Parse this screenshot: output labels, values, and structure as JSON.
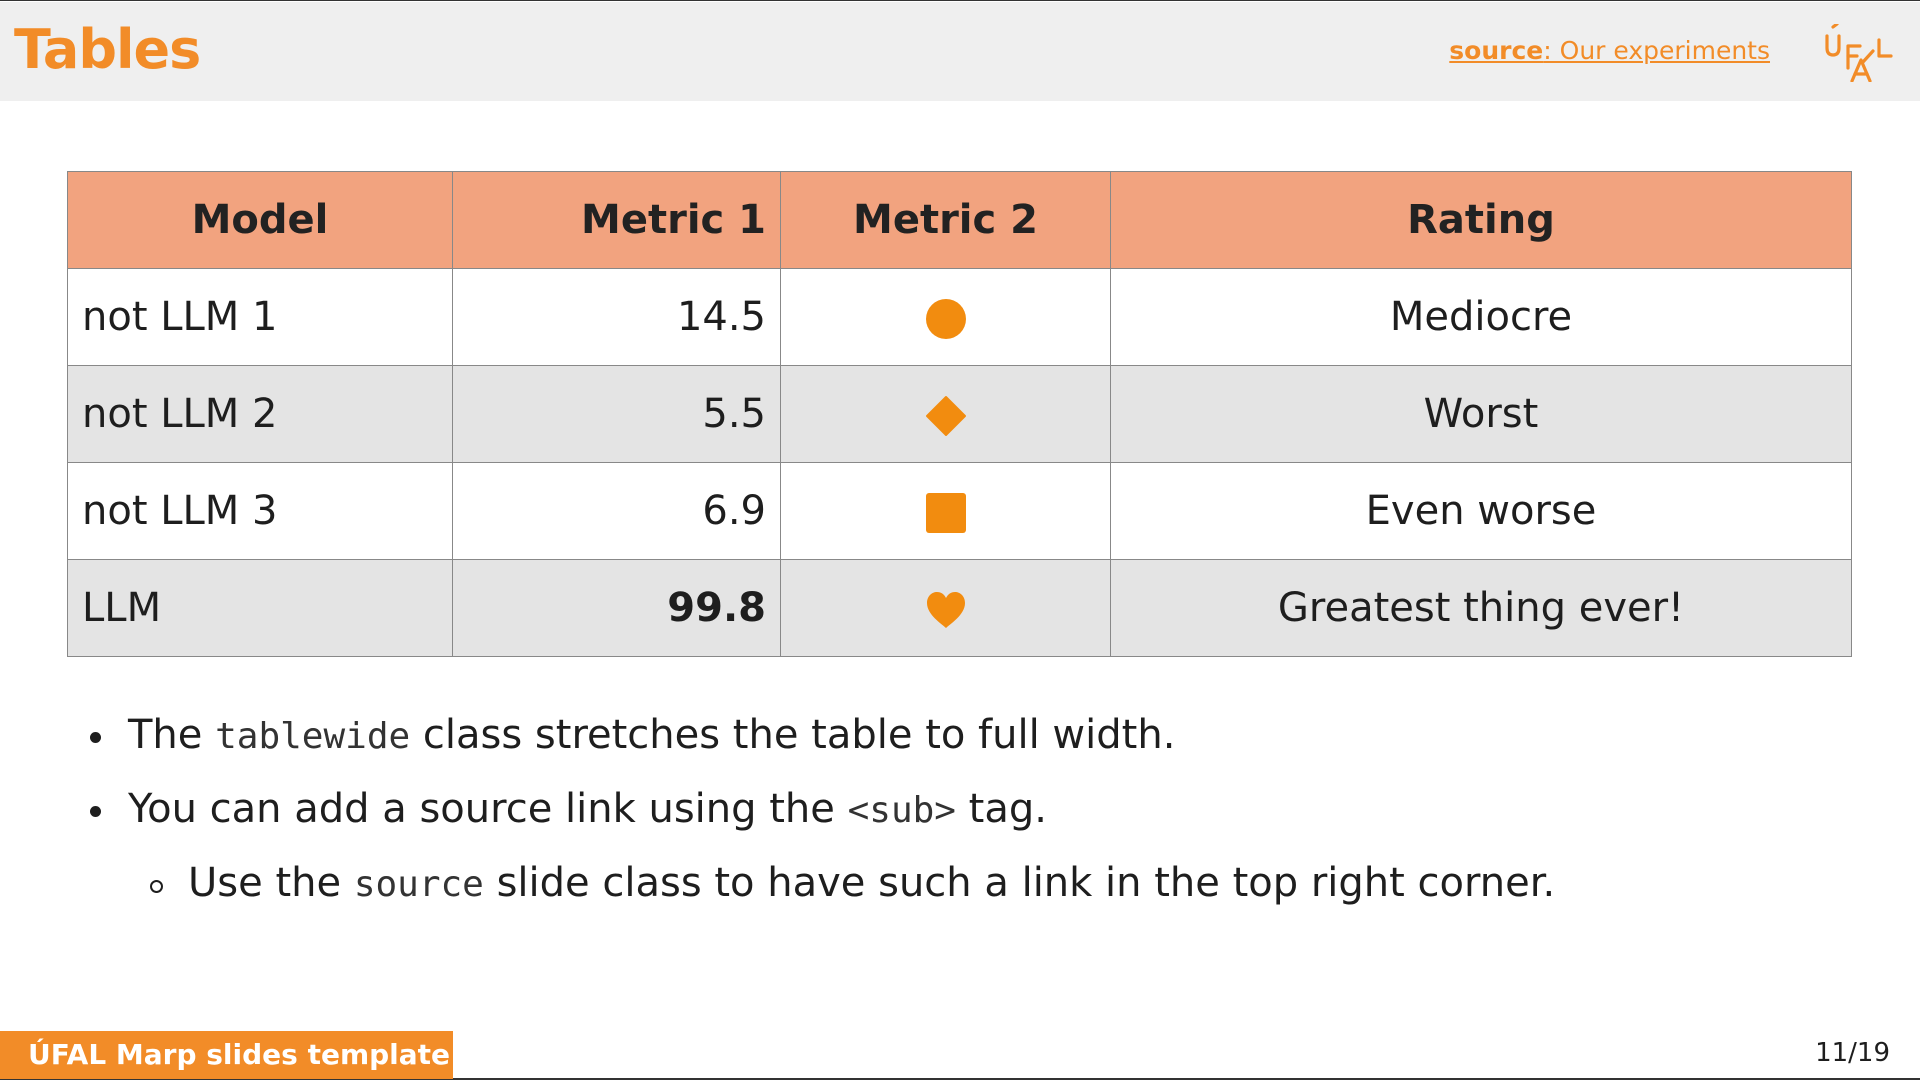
{
  "header": {
    "title": "Tables",
    "source_label": "source",
    "source_text": ": Our experiments",
    "logo_text": "ÚFAL"
  },
  "table": {
    "columns": [
      "Model",
      "Metric 1",
      "Metric 2",
      "Rating"
    ],
    "rows": [
      {
        "model": "not LLM 1",
        "metric1": "14.5",
        "metric2_icon": "circle-icon",
        "rating": "Mediocre"
      },
      {
        "model": "not LLM 2",
        "metric1": "5.5",
        "metric2_icon": "diamond-icon",
        "rating": "Worst"
      },
      {
        "model": "not LLM 3",
        "metric1": "6.9",
        "metric2_icon": "square-icon",
        "rating": "Even worse"
      },
      {
        "model": "LLM",
        "metric1": "99.8",
        "metric2_icon": "heart-icon",
        "rating": "Greatest thing ever!"
      }
    ]
  },
  "bullets": [
    {
      "before": "The ",
      "code": "tablewide",
      "after": " class stretches the table to full width."
    },
    {
      "before": "You can add a source link using the ",
      "code": "<sub>",
      "after": " tag."
    },
    {
      "before": "Use the ",
      "code": "source",
      "after": " slide class to have such a link in the top right corner."
    }
  ],
  "footer": {
    "label": "ÚFAL Marp slides template",
    "page": "11/19"
  },
  "colors": {
    "accent": "#f28c28",
    "table_header": "#f2a37f",
    "row_alt": "#e4e4e4",
    "shape_fill": "#f28c0f"
  }
}
